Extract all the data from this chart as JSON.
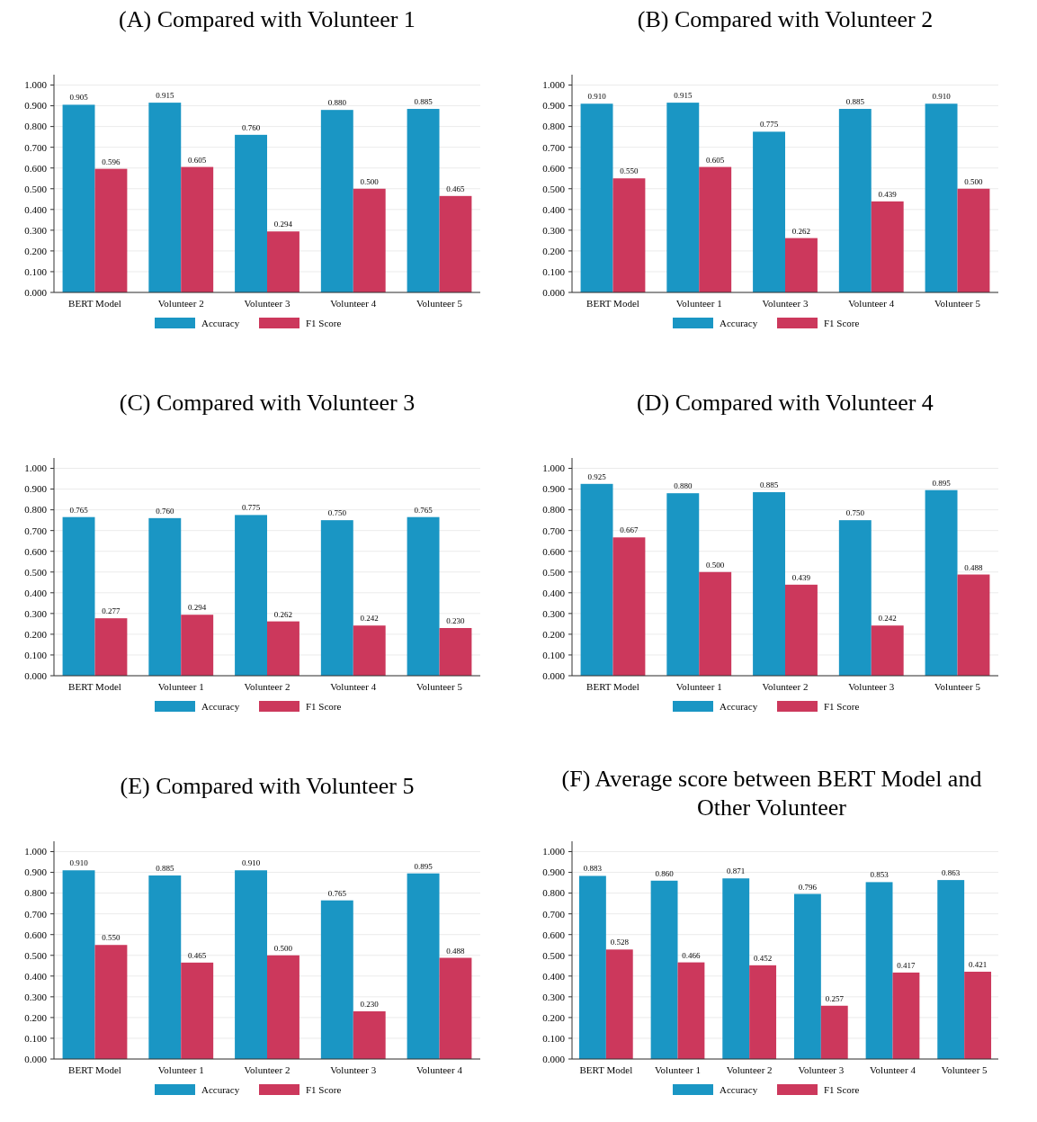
{
  "chart_data": [
    {
      "type": "bar",
      "title": "(A) Compared with Volunteer 1",
      "categories": [
        "BERT Model",
        "Volunteer 2",
        "Volunteer 3",
        "Volunteer 4",
        "Volunteer 5"
      ],
      "series": [
        {
          "name": "Accuracy",
          "color": "#1a96c4",
          "values": [
            0.905,
            0.915,
            0.76,
            0.88,
            0.885
          ],
          "value_labels": [
            "0.905",
            "0.915",
            "0.760",
            "0.880",
            "0.885"
          ]
        },
        {
          "name": "F1 Score",
          "color": "#cc385c",
          "values": [
            0.596,
            0.605,
            0.294,
            0.5,
            0.465
          ],
          "value_labels": [
            "0.596",
            "0.605",
            "0.294",
            "0.500",
            "0.465"
          ]
        }
      ],
      "ylim": [
        0,
        1.05
      ],
      "yticks": [
        {
          "value": 0,
          "label": "0.000"
        },
        {
          "value": 0.1,
          "label": "0.100"
        },
        {
          "value": 0.2,
          "label": "0.200"
        },
        {
          "value": 0.3,
          "label": "0.300"
        },
        {
          "value": 0.4,
          "label": "0.400"
        },
        {
          "value": 0.5,
          "label": "0.500"
        },
        {
          "value": 0.6,
          "label": "0.600"
        },
        {
          "value": 0.7,
          "label": "0.700"
        },
        {
          "value": 0.8,
          "label": "0.800"
        },
        {
          "value": 0.9,
          "label": "0.900"
        },
        {
          "value": 1,
          "label": "1.000"
        }
      ],
      "grid": "y",
      "legend": "bottom"
    },
    {
      "type": "bar",
      "title": "(B) Compared with Volunteer 2",
      "categories": [
        "BERT Model",
        "Volunteer 1",
        "Volunteer 3",
        "Volunteer 4",
        "Volunteer 5"
      ],
      "series": [
        {
          "name": "Accuracy",
          "color": "#1a96c4",
          "values": [
            0.91,
            0.915,
            0.775,
            0.885,
            0.91
          ],
          "value_labels": [
            "0.910",
            "0.915",
            "0.775",
            "0.885",
            "0.910"
          ]
        },
        {
          "name": "F1 Score",
          "color": "#cc385c",
          "values": [
            0.55,
            0.605,
            0.262,
            0.439,
            0.5
          ],
          "value_labels": [
            "0.550",
            "0.605",
            "0.262",
            "0.439",
            "0.500"
          ]
        }
      ],
      "ylim": [
        0,
        1.05
      ],
      "yticks": [
        {
          "value": 0,
          "label": "0.000"
        },
        {
          "value": 0.1,
          "label": "0.100"
        },
        {
          "value": 0.2,
          "label": "0.200"
        },
        {
          "value": 0.3,
          "label": "0.300"
        },
        {
          "value": 0.4,
          "label": "0.400"
        },
        {
          "value": 0.5,
          "label": "0.500"
        },
        {
          "value": 0.6,
          "label": "0.600"
        },
        {
          "value": 0.7,
          "label": "0.700"
        },
        {
          "value": 0.8,
          "label": "0.800"
        },
        {
          "value": 0.9,
          "label": "0.900"
        },
        {
          "value": 1,
          "label": "1.000"
        }
      ],
      "grid": "y",
      "legend": "bottom"
    },
    {
      "type": "bar",
      "title": "(C) Compared with Volunteer 3",
      "categories": [
        "BERT Model",
        "Volunteer 1",
        "Volunteer 2",
        "Volunteer 4",
        "Volunteer 5"
      ],
      "series": [
        {
          "name": "Accuracy",
          "color": "#1a96c4",
          "values": [
            0.765,
            0.76,
            0.775,
            0.75,
            0.765
          ],
          "value_labels": [
            "0.765",
            "0.760",
            "0.775",
            "0.750",
            "0.765"
          ]
        },
        {
          "name": "F1 Score",
          "color": "#cc385c",
          "values": [
            0.277,
            0.294,
            0.262,
            0.242,
            0.23
          ],
          "value_labels": [
            "0.277",
            "0.294",
            "0.262",
            "0.242",
            "0.230"
          ]
        }
      ],
      "ylim": [
        0,
        1.05
      ],
      "yticks": [
        {
          "value": 0,
          "label": "0.000"
        },
        {
          "value": 0.1,
          "label": "0.100"
        },
        {
          "value": 0.2,
          "label": "0.200"
        },
        {
          "value": 0.3,
          "label": "0.300"
        },
        {
          "value": 0.4,
          "label": "0.400"
        },
        {
          "value": 0.5,
          "label": "0.500"
        },
        {
          "value": 0.6,
          "label": "0.600"
        },
        {
          "value": 0.7,
          "label": "0.700"
        },
        {
          "value": 0.8,
          "label": "0.800"
        },
        {
          "value": 0.9,
          "label": "0.900"
        },
        {
          "value": 1,
          "label": "1.000"
        }
      ],
      "grid": "y",
      "legend": "bottom"
    },
    {
      "type": "bar",
      "title": "(D) Compared with Volunteer 4",
      "categories": [
        "BERT Model",
        "Volunteer 1",
        "Volunteer 2",
        "Volunteer 3",
        "Volunteer 5"
      ],
      "series": [
        {
          "name": "Accuracy",
          "color": "#1a96c4",
          "values": [
            0.925,
            0.88,
            0.885,
            0.75,
            0.895
          ],
          "value_labels": [
            "0.925",
            "0.880",
            "0.885",
            "0.750",
            "0.895"
          ]
        },
        {
          "name": "F1 Score",
          "color": "#cc385c",
          "values": [
            0.667,
            0.5,
            0.439,
            0.242,
            0.488
          ],
          "value_labels": [
            "0.667",
            "0.500",
            "0.439",
            "0.242",
            "0.488"
          ]
        }
      ],
      "ylim": [
        0,
        1.05
      ],
      "yticks": [
        {
          "value": 0,
          "label": "0.000"
        },
        {
          "value": 0.1,
          "label": "0.100"
        },
        {
          "value": 0.2,
          "label": "0.200"
        },
        {
          "value": 0.3,
          "label": "0.300"
        },
        {
          "value": 0.4,
          "label": "0.400"
        },
        {
          "value": 0.5,
          "label": "0.500"
        },
        {
          "value": 0.6,
          "label": "0.600"
        },
        {
          "value": 0.7,
          "label": "0.700"
        },
        {
          "value": 0.8,
          "label": "0.800"
        },
        {
          "value": 0.9,
          "label": "0.900"
        },
        {
          "value": 1,
          "label": "1.000"
        }
      ],
      "grid": "y",
      "legend": "bottom"
    },
    {
      "type": "bar",
      "title": "(E) Compared with Volunteer 5",
      "categories": [
        "BERT Model",
        "Volunteer 1",
        "Volunteer 2",
        "Volunteer 3",
        "Volunteer 4"
      ],
      "series": [
        {
          "name": "Accuracy",
          "color": "#1a96c4",
          "values": [
            0.91,
            0.885,
            0.91,
            0.765,
            0.895
          ],
          "value_labels": [
            "0.910",
            "0.885",
            "0.910",
            "0.765",
            "0.895"
          ]
        },
        {
          "name": "F1 Score",
          "color": "#cc385c",
          "values": [
            0.55,
            0.465,
            0.5,
            0.23,
            0.488
          ],
          "value_labels": [
            "0.550",
            "0.465",
            "0.500",
            "0.230",
            "0.488"
          ]
        }
      ],
      "ylim": [
        0,
        1.05
      ],
      "yticks": [
        {
          "value": 0,
          "label": "0.000"
        },
        {
          "value": 0.1,
          "label": "0.100"
        },
        {
          "value": 0.2,
          "label": "0.200"
        },
        {
          "value": 0.3,
          "label": "0.300"
        },
        {
          "value": 0.4,
          "label": "0.400"
        },
        {
          "value": 0.5,
          "label": "0.500"
        },
        {
          "value": 0.6,
          "label": "0.600"
        },
        {
          "value": 0.7,
          "label": "0.700"
        },
        {
          "value": 0.8,
          "label": "0.800"
        },
        {
          "value": 0.9,
          "label": "0.900"
        },
        {
          "value": 1,
          "label": "1.000"
        }
      ],
      "grid": "y",
      "legend": "bottom"
    },
    {
      "type": "bar",
      "title": "(F) Average score between BERT Model and Other Volunteer",
      "categories": [
        "BERT Model",
        "Volunteer 1",
        "Volunteer 2",
        "Volunteer 3",
        "Volunteer 4",
        "Volunteer 5"
      ],
      "series": [
        {
          "name": "Accuracy",
          "color": "#1a96c4",
          "values": [
            0.883,
            0.86,
            0.871,
            0.796,
            0.853,
            0.863
          ],
          "value_labels": [
            "0.883",
            "0.860",
            "0.871",
            "0.796",
            "0.853",
            "0.863"
          ]
        },
        {
          "name": "F1 Score",
          "color": "#cc385c",
          "values": [
            0.528,
            0.466,
            0.452,
            0.257,
            0.417,
            0.421
          ],
          "value_labels": [
            "0.528",
            "0.466",
            "0.452",
            "0.257",
            "0.417",
            "0.421"
          ]
        }
      ],
      "ylim": [
        0,
        1.05
      ],
      "yticks": [
        {
          "value": 0,
          "label": "0.000"
        },
        {
          "value": 0.1,
          "label": "0.100"
        },
        {
          "value": 0.2,
          "label": "0.200"
        },
        {
          "value": 0.3,
          "label": "0.300"
        },
        {
          "value": 0.4,
          "label": "0.400"
        },
        {
          "value": 0.5,
          "label": "0.500"
        },
        {
          "value": 0.6,
          "label": "0.600"
        },
        {
          "value": 0.7,
          "label": "0.700"
        },
        {
          "value": 0.8,
          "label": "0.800"
        },
        {
          "value": 0.9,
          "label": "0.900"
        },
        {
          "value": 1,
          "label": "1.000"
        }
      ],
      "grid": "y",
      "legend": "bottom"
    }
  ]
}
